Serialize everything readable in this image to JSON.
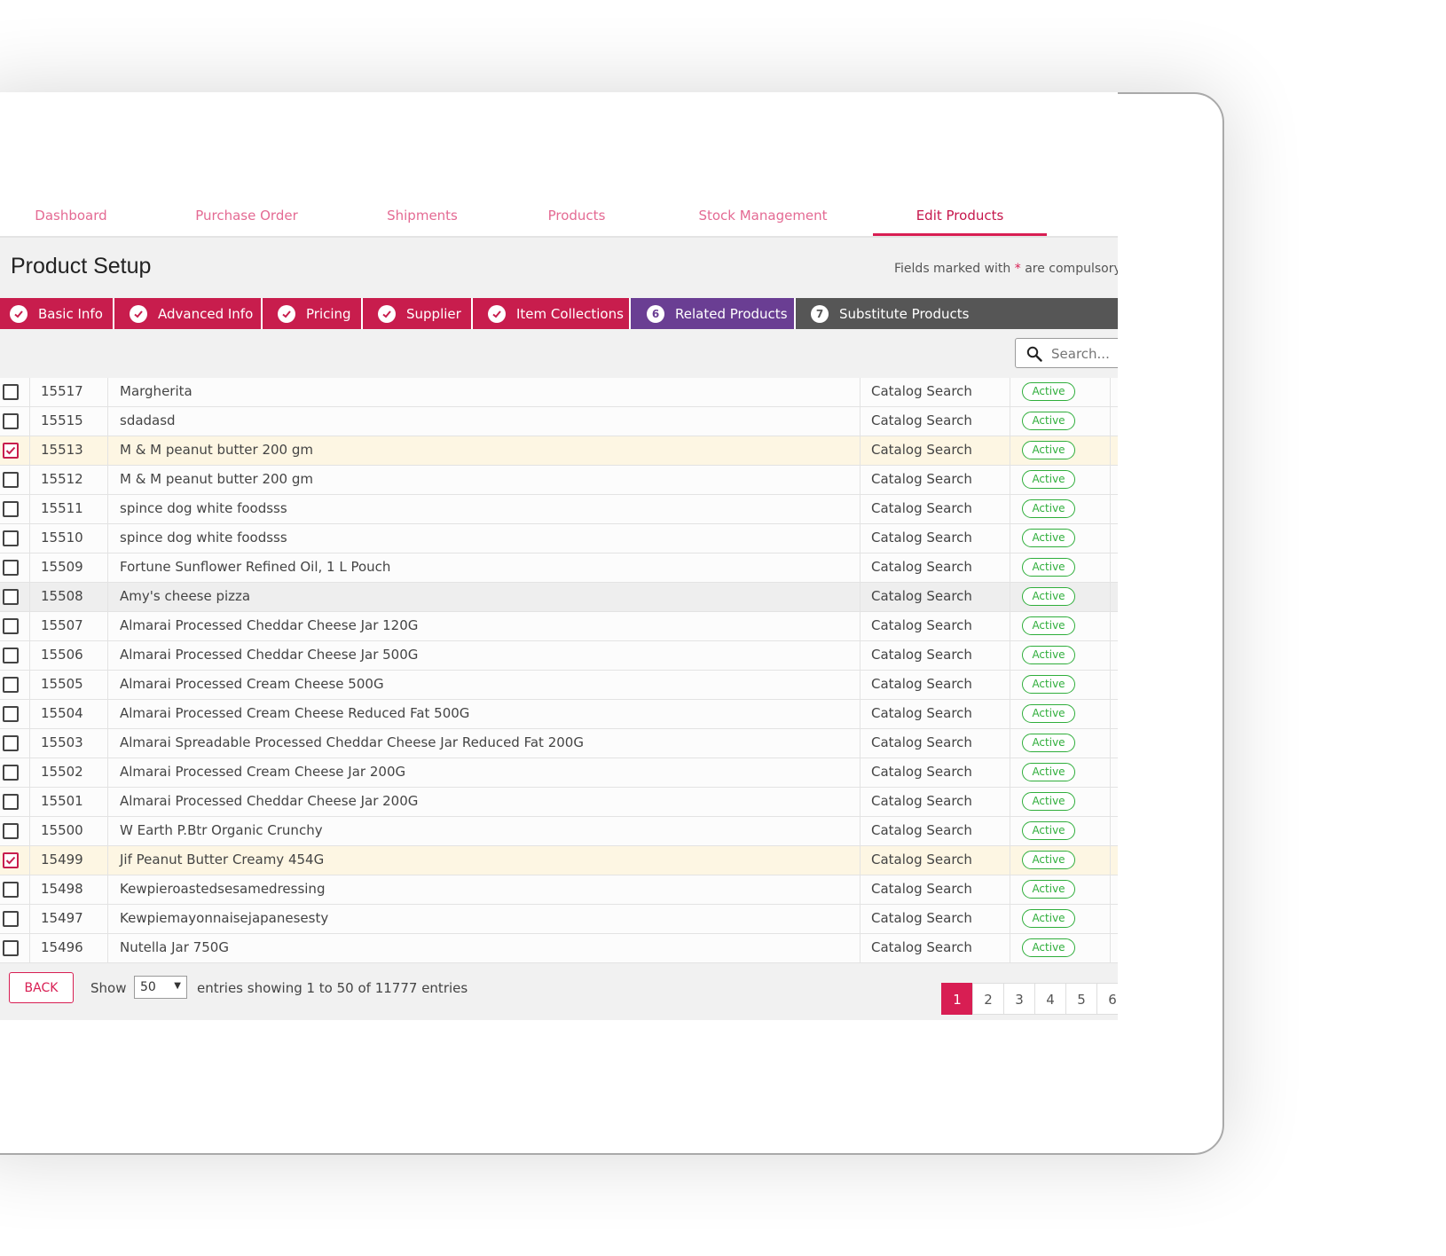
{
  "nav": {
    "items": [
      {
        "label": "Dashboard"
      },
      {
        "label": "Purchase Order"
      },
      {
        "label": "Shipments"
      },
      {
        "label": "Products"
      },
      {
        "label": "Stock Management"
      },
      {
        "label": "Edit Products"
      }
    ],
    "active": "Edit Products"
  },
  "page": {
    "title": "Product Setup",
    "hint_prefix": "Fields marked with",
    "hint_star": "*",
    "hint_suffix": "are compulsory"
  },
  "steps": [
    {
      "label": "Basic Info",
      "state": "done",
      "icon": "check-icon"
    },
    {
      "label": "Advanced Info",
      "state": "done",
      "icon": "check-icon"
    },
    {
      "label": "Pricing",
      "state": "done",
      "icon": "check-icon"
    },
    {
      "label": "Supplier",
      "state": "done",
      "icon": "check-icon"
    },
    {
      "label": "Item Collections",
      "state": "done",
      "icon": "check-icon"
    },
    {
      "label": "Related Products",
      "state": "current",
      "number": "6"
    },
    {
      "label": "Substitute Products",
      "state": "todo",
      "number": "7"
    }
  ],
  "search": {
    "placeholder": "Search..."
  },
  "table": {
    "rows": [
      {
        "id": "15517",
        "name": "Margherita",
        "source": "Catalog Search",
        "status": "Active",
        "checked": false
      },
      {
        "id": "15515",
        "name": "sdadasd",
        "source": "Catalog Search",
        "status": "Active",
        "checked": false
      },
      {
        "id": "15513",
        "name": "M & M peanut butter 200 gm",
        "source": "Catalog Search",
        "status": "Active",
        "checked": true
      },
      {
        "id": "15512",
        "name": "M & M peanut butter 200 gm",
        "source": "Catalog Search",
        "status": "Active",
        "checked": false
      },
      {
        "id": "15511",
        "name": "spince dog white foodsss",
        "source": "Catalog Search",
        "status": "Active",
        "checked": false
      },
      {
        "id": "15510",
        "name": "spince dog white foodsss",
        "source": "Catalog Search",
        "status": "Active",
        "checked": false
      },
      {
        "id": "15509",
        "name": "Fortune Sunflower Refined Oil, 1 L Pouch",
        "source": "Catalog Search",
        "status": "Active",
        "checked": false
      },
      {
        "id": "15508",
        "name": "Amy's cheese pizza",
        "source": "Catalog Search",
        "status": "Active",
        "checked": false,
        "hover": true
      },
      {
        "id": "15507",
        "name": "Almarai Processed Cheddar Cheese Jar 120G",
        "source": "Catalog Search",
        "status": "Active",
        "checked": false
      },
      {
        "id": "15506",
        "name": "Almarai Processed Cheddar Cheese Jar 500G",
        "source": "Catalog Search",
        "status": "Active",
        "checked": false
      },
      {
        "id": "15505",
        "name": "Almarai Processed Cream Cheese 500G",
        "source": "Catalog Search",
        "status": "Active",
        "checked": false
      },
      {
        "id": "15504",
        "name": "Almarai Processed Cream Cheese Reduced Fat 500G",
        "source": "Catalog Search",
        "status": "Active",
        "checked": false
      },
      {
        "id": "15503",
        "name": "Almarai Spreadable Processed Cheddar Cheese Jar Reduced Fat 200G",
        "source": "Catalog Search",
        "status": "Active",
        "checked": false
      },
      {
        "id": "15502",
        "name": "Almarai Processed Cream Cheese Jar 200G",
        "source": "Catalog Search",
        "status": "Active",
        "checked": false
      },
      {
        "id": "15501",
        "name": "Almarai Processed Cheddar Cheese Jar 200G",
        "source": "Catalog Search",
        "status": "Active",
        "checked": false
      },
      {
        "id": "15500",
        "name": "W Earth P.Btr Organic Crunchy",
        "source": "Catalog Search",
        "status": "Active",
        "checked": false
      },
      {
        "id": "15499",
        "name": "Jif Peanut Butter Creamy 454G",
        "source": "Catalog Search",
        "status": "Active",
        "checked": true
      },
      {
        "id": "15498",
        "name": "Kewpieroastedsesamedressing",
        "source": "Catalog Search",
        "status": "Active",
        "checked": false
      },
      {
        "id": "15497",
        "name": "Kewpiemayonnaisejapanesesty",
        "source": "Catalog Search",
        "status": "Active",
        "checked": false
      },
      {
        "id": "15496",
        "name": "Nutella Jar 750G",
        "source": "Catalog Search",
        "status": "Active",
        "checked": false
      }
    ]
  },
  "footer": {
    "back_label": "BACK",
    "show_label": "Show",
    "page_size": "50",
    "entries_text": "entries showing 1 to 50 of 11777 entries",
    "pages": [
      "1",
      "2",
      "3",
      "4",
      "5",
      "6"
    ],
    "current_page": "1"
  },
  "colors": {
    "accent": "#d81e53",
    "step_current": "#6a3e93",
    "step_todo": "#565656",
    "status_active": "#2fae3b",
    "row_checked": "#fdf6e3"
  }
}
